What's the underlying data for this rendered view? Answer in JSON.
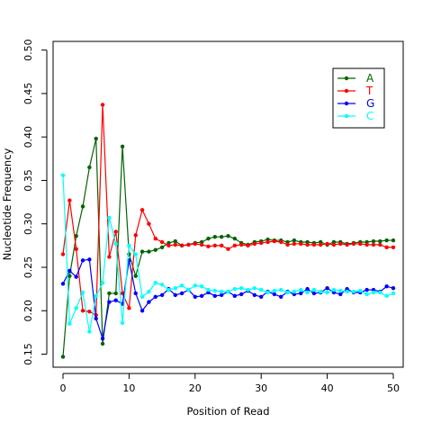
{
  "chart_data": {
    "type": "line",
    "title": "",
    "xlabel": "Position of Read",
    "ylabel": "Nucleotide Frequency",
    "xlim": [
      -1.5,
      51.5
    ],
    "ylim": [
      0.135,
      0.51
    ],
    "xticks": [
      0,
      10,
      20,
      30,
      40,
      50
    ],
    "yticks": [
      0.15,
      0.2,
      0.25,
      0.3,
      0.35,
      0.4,
      0.45,
      0.5
    ],
    "ytick_labels": [
      "0.15",
      "0.20",
      "0.25",
      "0.30",
      "0.35",
      "0.40",
      "0.45",
      "0.50"
    ],
    "grid": false,
    "legend_position": "top-right",
    "x": [
      0,
      1,
      2,
      3,
      4,
      5,
      6,
      7,
      8,
      9,
      10,
      11,
      12,
      13,
      14,
      15,
      16,
      17,
      18,
      19,
      20,
      21,
      22,
      23,
      24,
      25,
      26,
      27,
      28,
      29,
      30,
      31,
      32,
      33,
      34,
      35,
      36,
      37,
      38,
      39,
      40,
      41,
      42,
      43,
      44,
      45,
      46,
      47,
      48,
      49,
      50
    ],
    "series": [
      {
        "name": "A",
        "color": "#006400",
        "values": [
          0.147,
          0.24,
          0.286,
          0.32,
          0.365,
          0.398,
          0.162,
          0.22,
          0.22,
          0.389,
          0.265,
          0.24,
          0.268,
          0.268,
          0.27,
          0.273,
          0.278,
          0.28,
          0.275,
          0.276,
          0.278,
          0.279,
          0.283,
          0.285,
          0.285,
          0.286,
          0.283,
          0.278,
          0.276,
          0.279,
          0.28,
          0.282,
          0.281,
          0.281,
          0.279,
          0.281,
          0.279,
          0.279,
          0.278,
          0.279,
          0.276,
          0.279,
          0.279,
          0.277,
          0.278,
          0.279,
          0.279,
          0.28,
          0.28,
          0.281,
          0.281
        ]
      },
      {
        "name": "T",
        "color": "#ff0000",
        "values": [
          0.265,
          0.327,
          0.271,
          0.2,
          0.199,
          0.195,
          0.437,
          0.262,
          0.291,
          0.22,
          0.203,
          0.287,
          0.316,
          0.3,
          0.283,
          0.279,
          0.275,
          0.276,
          0.275,
          0.276,
          0.277,
          0.276,
          0.274,
          0.275,
          0.275,
          0.271,
          0.275,
          0.276,
          0.275,
          0.277,
          0.278,
          0.279,
          0.28,
          0.279,
          0.276,
          0.277,
          0.277,
          0.276,
          0.276,
          0.276,
          0.277,
          0.276,
          0.277,
          0.276,
          0.277,
          0.277,
          0.276,
          0.276,
          0.276,
          0.273,
          0.273
        ]
      },
      {
        "name": "G",
        "color": "#0000ff",
        "values": [
          0.231,
          0.246,
          0.239,
          0.258,
          0.259,
          0.191,
          0.168,
          0.21,
          0.212,
          0.208,
          0.258,
          0.22,
          0.2,
          0.21,
          0.216,
          0.218,
          0.225,
          0.218,
          0.22,
          0.224,
          0.216,
          0.217,
          0.221,
          0.217,
          0.218,
          0.222,
          0.217,
          0.219,
          0.223,
          0.218,
          0.216,
          0.222,
          0.219,
          0.216,
          0.222,
          0.219,
          0.22,
          0.225,
          0.22,
          0.221,
          0.226,
          0.221,
          0.219,
          0.225,
          0.221,
          0.221,
          0.224,
          0.224,
          0.222,
          0.228,
          0.226
        ]
      },
      {
        "name": "C",
        "color": "#00ffff",
        "values": [
          0.356,
          0.185,
          0.203,
          0.221,
          0.176,
          0.217,
          0.232,
          0.307,
          0.277,
          0.186,
          0.275,
          0.265,
          0.216,
          0.222,
          0.232,
          0.23,
          0.224,
          0.226,
          0.229,
          0.224,
          0.229,
          0.228,
          0.224,
          0.223,
          0.222,
          0.222,
          0.225,
          0.226,
          0.224,
          0.226,
          0.224,
          0.221,
          0.223,
          0.224,
          0.221,
          0.222,
          0.224,
          0.221,
          0.224,
          0.222,
          0.221,
          0.224,
          0.223,
          0.222,
          0.222,
          0.223,
          0.219,
          0.221,
          0.221,
          0.217,
          0.22
        ]
      }
    ]
  }
}
